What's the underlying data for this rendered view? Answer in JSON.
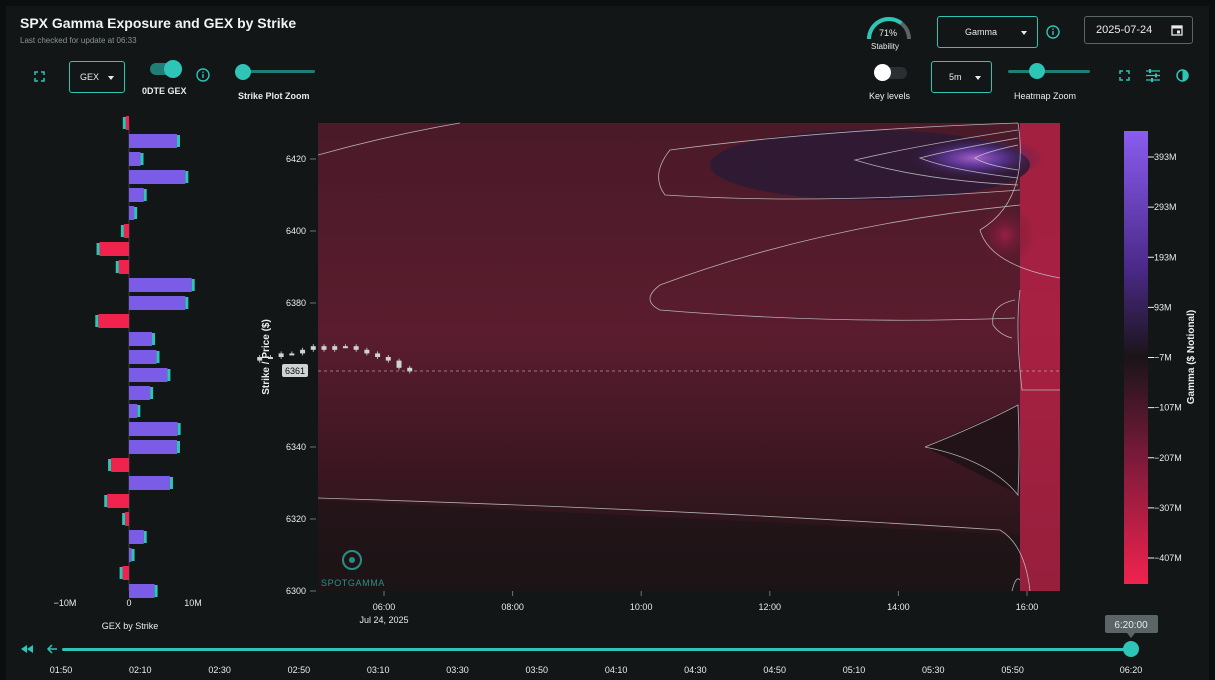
{
  "header": {
    "title": "SPX Gamma Exposure and GEX by Strike",
    "subtitle": "Last checked for update at 06:33",
    "stability_value": "71%",
    "stability_fraction": 0.71,
    "stability_label": "Stability",
    "metric_select": "Gamma",
    "date": "2025-07-24"
  },
  "controls": {
    "gex_select": "GEX",
    "odte_label": "0DTE GEX",
    "odte_on": true,
    "strike_zoom_label": "Strike Plot Zoom",
    "key_levels_label": "Key levels",
    "key_levels_on": false,
    "interval_select": "5m",
    "heatmap_zoom_label": "Heatmap Zoom"
  },
  "colors": {
    "accent": "#2ec4b6",
    "positive": "#7b5ce6",
    "negative": "#f0234f"
  },
  "chart_data": [
    {
      "type": "bar",
      "orientation": "horizontal",
      "title": "GEX by Strike",
      "xlabel": "GEX by Strike",
      "xtick_labels": [
        "−10M",
        "0",
        "10M"
      ],
      "xlim": [
        -10,
        10
      ],
      "ylim": [
        6300,
        6430
      ],
      "strikes": [
        6430,
        6425,
        6420,
        6415,
        6410,
        6405,
        6400,
        6395,
        6390,
        6385,
        6380,
        6375,
        6370,
        6365,
        6360,
        6355,
        6350,
        6345,
        6340,
        6335,
        6330,
        6325,
        6320,
        6315,
        6310,
        6305,
        6300
      ],
      "values": [
        -0.5,
        7.5,
        1.8,
        8.8,
        2.3,
        0.8,
        -0.8,
        -4.6,
        -1.6,
        9.8,
        8.8,
        -4.8,
        3.6,
        4.3,
        6.0,
        3.3,
        1.3,
        7.6,
        7.5,
        -2.8,
        6.4,
        -3.4,
        -0.6,
        2.3,
        0.4,
        -1.0,
        4.0
      ]
    },
    {
      "type": "heatmap",
      "ylabel": "Strike / Price ($)",
      "ytick_labels": [
        "6420",
        "6400",
        "6380",
        "6340",
        "6320",
        "6300"
      ],
      "ylim": [
        6300,
        6430
      ],
      "xtick_labels": [
        "06:00",
        "08:00",
        "10:00",
        "12:00",
        "14:00",
        "16:00"
      ],
      "x_date_label": "Jul 24, 2025",
      "current_price_label": "6361",
      "current_price": 6361,
      "colorbar": {
        "label": "Gamma ($ Notional)",
        "tick_labels": [
          "393M",
          "293M",
          "193M",
          "93M",
          "−7M",
          "−107M",
          "−207M",
          "−307M",
          "−407M"
        ]
      },
      "watermark": "SPOTGAMMA",
      "candles": [
        {
          "t": "05:00",
          "o": 6364,
          "c": 6365
        },
        {
          "t": "05:10",
          "o": 6365,
          "c": 6365
        },
        {
          "t": "05:20",
          "o": 6365,
          "c": 6366
        },
        {
          "t": "05:30",
          "o": 6366,
          "c": 6366
        },
        {
          "t": "05:40",
          "o": 6366,
          "c": 6367
        },
        {
          "t": "05:50",
          "o": 6367,
          "c": 6368
        },
        {
          "t": "06:00",
          "o": 6368,
          "c": 6367
        },
        {
          "t": "06:10",
          "o": 6367,
          "c": 6368
        },
        {
          "t": "06:20",
          "o": 6368,
          "c": 6368
        },
        {
          "t": "06:30",
          "o": 6368,
          "c": 6367
        },
        {
          "t": "06:40",
          "o": 6367,
          "c": 6366
        },
        {
          "t": "06:50",
          "o": 6366,
          "c": 6365
        },
        {
          "t": "07:00",
          "o": 6365,
          "c": 6364
        },
        {
          "t": "07:10",
          "o": 6364,
          "c": 6362
        },
        {
          "t": "07:20",
          "o": 6362,
          "c": 6361
        }
      ]
    }
  ],
  "timeline": {
    "labels": [
      "01:50",
      "02:10",
      "02:30",
      "02:50",
      "03:10",
      "03:30",
      "03:50",
      "04:10",
      "04:30",
      "04:50",
      "05:10",
      "05:30",
      "05:50",
      "06:20"
    ],
    "current_label": "6:20:00",
    "position_fraction": 1.0
  }
}
